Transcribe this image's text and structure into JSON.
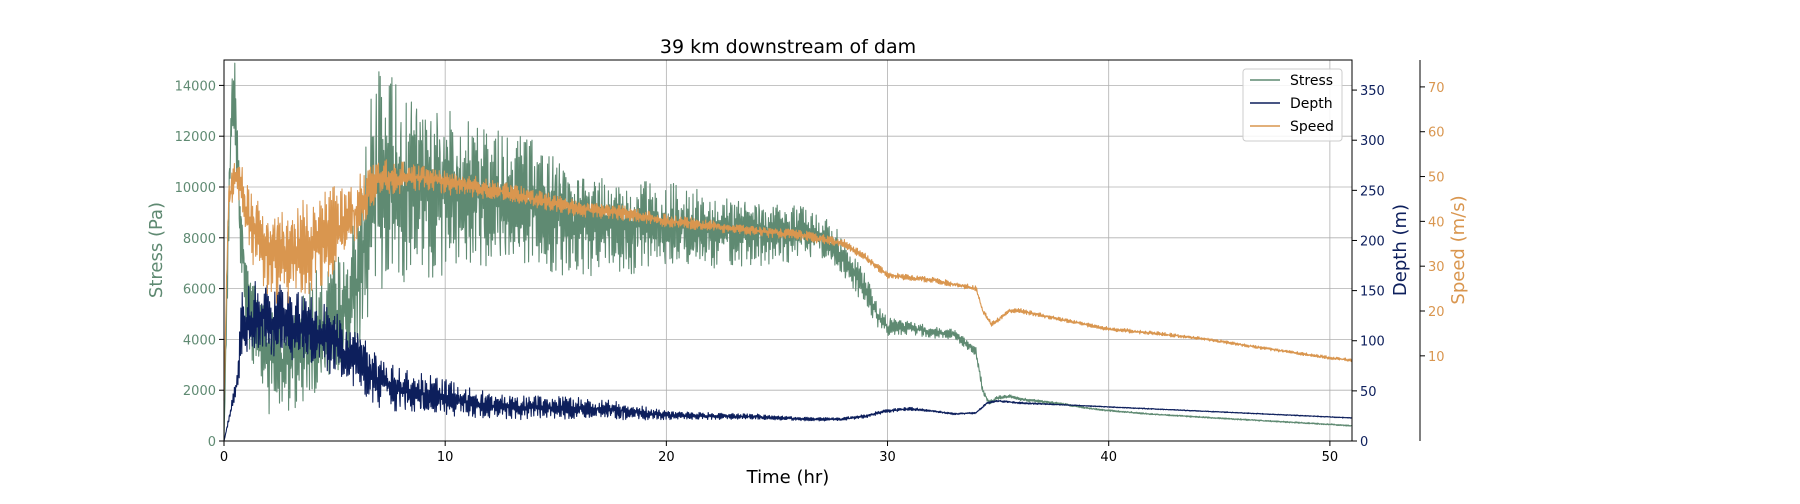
{
  "chart_data": {
    "type": "line",
    "title": "39 km downstream of dam",
    "xlabel": "Time (hr)",
    "xlim": [
      0,
      51
    ],
    "xticks": [
      0,
      10,
      20,
      30,
      40,
      50
    ],
    "grid": true,
    "legend_position": "top-right",
    "axes": {
      "stress": {
        "label": "Stress (Pa)",
        "ylim": [
          0,
          15000
        ],
        "ticks": [
          0,
          2000,
          4000,
          6000,
          8000,
          10000,
          12000,
          14000
        ],
        "color": "#5f8a72"
      },
      "depth": {
        "label": "Depth (m)",
        "ylim": [
          0,
          380
        ],
        "ticks": [
          0,
          50,
          100,
          150,
          200,
          250,
          300,
          350
        ],
        "color": "#0d1f5c"
      },
      "speed": {
        "label": "Speed (m/s)",
        "ylim": [
          -9,
          76
        ],
        "ticks": [
          10,
          20,
          30,
          40,
          50,
          60,
          70
        ],
        "color": "#d9964f"
      }
    },
    "series": [
      {
        "name": "Stress",
        "axis": "stress",
        "color": "#5f8a72",
        "x": [
          0,
          0.3,
          0.5,
          0.7,
          1,
          1.5,
          2,
          2.5,
          3,
          3.5,
          4,
          4.5,
          5,
          5.5,
          6,
          6.5,
          7,
          7.5,
          8,
          8.5,
          9,
          9.5,
          10,
          11,
          12,
          13,
          14,
          15,
          16,
          17,
          18,
          19,
          20,
          21,
          22,
          23,
          24,
          25,
          26,
          27,
          28,
          28.5,
          29,
          29.5,
          30,
          31,
          32,
          33,
          34,
          34.3,
          34.6,
          35,
          35.5,
          36,
          37,
          38,
          39,
          40,
          42,
          44,
          46,
          48,
          50,
          51
        ],
        "y": [
          0,
          12500,
          13500,
          9000,
          6000,
          4500,
          3500,
          3200,
          3500,
          3800,
          4200,
          4300,
          4600,
          5000,
          6000,
          8500,
          10000,
          10500,
          10200,
          10200,
          10300,
          10100,
          10000,
          9800,
          9600,
          9400,
          9200,
          9000,
          8800,
          8600,
          8500,
          8400,
          8400,
          8300,
          8300,
          8300,
          8300,
          8200,
          8200,
          8000,
          7200,
          6500,
          6000,
          5000,
          4500,
          4500,
          4300,
          4200,
          3500,
          2000,
          1500,
          1700,
          1750,
          1650,
          1550,
          1450,
          1300,
          1200,
          1050,
          950,
          850,
          750,
          650,
          600
        ],
        "noise": [
          0,
          2000,
          1800,
          1800,
          2000,
          2300,
          2400,
          2500,
          2600,
          2600,
          2600,
          2600,
          2600,
          2600,
          3200,
          4800,
          4800,
          4500,
          4200,
          4000,
          3800,
          3700,
          3600,
          3400,
          3200,
          3000,
          2800,
          2600,
          2400,
          2200,
          2100,
          2000,
          1900,
          1700,
          1600,
          1500,
          1400,
          1300,
          1200,
          1000,
          900,
          800,
          700,
          500,
          400,
          300,
          250,
          250,
          200,
          150,
          100,
          80,
          80,
          70,
          60,
          50,
          40,
          40,
          30,
          30,
          30,
          30,
          30,
          30
        ]
      },
      {
        "name": "Depth",
        "axis": "depth",
        "color": "#0d1f5c",
        "x": [
          0,
          0.3,
          0.6,
          0.8,
          1.5,
          2,
          3,
          4,
          5,
          6,
          7,
          8,
          9,
          10,
          12,
          14,
          16,
          18,
          20,
          22,
          24,
          26,
          28,
          29,
          30,
          31,
          32,
          33,
          34,
          34.5,
          35,
          36,
          38,
          40,
          42,
          44,
          46,
          48,
          50,
          51
        ],
        "y": [
          0,
          30,
          60,
          110,
          120,
          115,
          115,
          110,
          100,
          85,
          60,
          50,
          45,
          42,
          36,
          34,
          32,
          30,
          26,
          25,
          24,
          22,
          22,
          25,
          30,
          32,
          30,
          27,
          28,
          38,
          40,
          38,
          36,
          34,
          32,
          30,
          28,
          26,
          24,
          23
        ],
        "noise": [
          0,
          5,
          10,
          40,
          42,
          42,
          40,
          38,
          36,
          33,
          28,
          24,
          22,
          20,
          14,
          13,
          12,
          10,
          5,
          4,
          3,
          2,
          2,
          2,
          2,
          2,
          1,
          1,
          1,
          1,
          1,
          1,
          0.5,
          0.5,
          0.5,
          0.5,
          0.5,
          0.5,
          0.5,
          0.5
        ]
      },
      {
        "name": "Speed",
        "axis": "speed",
        "color": "#d9964f",
        "x": [
          0,
          0.2,
          0.5,
          0.8,
          1,
          1.5,
          2,
          3,
          4,
          5,
          6,
          6.5,
          7,
          8,
          9,
          10,
          12,
          14,
          16,
          18,
          20,
          22,
          24,
          26,
          27,
          28,
          29,
          29.5,
          30,
          32,
          33,
          34,
          34.3,
          34.7,
          35,
          35.5,
          36,
          38,
          40,
          42,
          44,
          46,
          48,
          50,
          51
        ],
        "y": [
          0,
          45,
          50,
          48,
          42,
          37,
          33,
          33,
          35,
          37,
          42,
          46,
          49,
          50,
          50,
          49,
          47,
          45,
          43,
          42,
          40,
          39,
          38,
          37,
          36,
          35,
          32,
          30,
          28,
          27,
          26,
          25,
          20,
          17,
          18,
          20,
          20,
          18,
          16,
          15,
          14,
          12.5,
          11,
          9.5,
          9
        ],
        "noise": [
          0,
          4,
          4,
          6,
          8,
          10,
          11,
          12,
          12,
          11,
          8,
          6,
          5,
          4,
          3,
          3,
          2.5,
          2.2,
          2,
          1.8,
          1.6,
          1.4,
          1.3,
          1.2,
          1.2,
          1.1,
          1,
          0.9,
          0.8,
          0.7,
          0.7,
          0.7,
          0.6,
          0.6,
          0.6,
          0.6,
          0.6,
          0.5,
          0.5,
          0.5,
          0.4,
          0.4,
          0.4,
          0.4,
          0.4
        ]
      }
    ]
  }
}
